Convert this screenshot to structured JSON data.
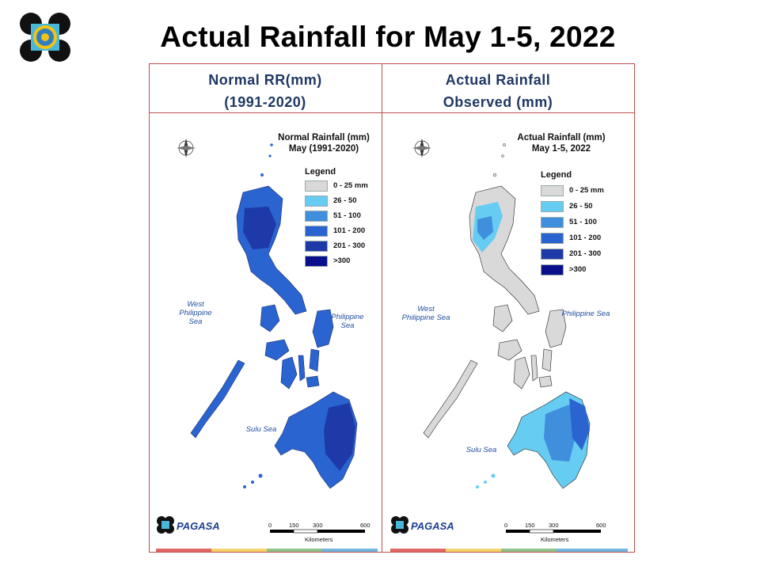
{
  "slide": {
    "title": "Actual Rainfall for May 1-5, 2022"
  },
  "columns": [
    {
      "header_line1": "Normal RR(mm)",
      "header_line2": "(1991-2020)",
      "map_title_line1": "Normal Rainfall (mm)",
      "map_title_line2": "May (1991-2020)"
    },
    {
      "header_line1": "Actual Rainfall",
      "header_line2": "Observed  (mm)",
      "map_title_line1": "Actual Rainfall (mm)",
      "map_title_line2": "May 1-5, 2022"
    }
  ],
  "legend": {
    "title": "Legend",
    "items": [
      {
        "label": "0 - 25 mm",
        "color": "#d9d9d9"
      },
      {
        "label": "26 - 50",
        "color": "#66ccf2"
      },
      {
        "label": "51 - 100",
        "color": "#3f8fdc"
      },
      {
        "label": "101 - 200",
        "color": "#2a64d0"
      },
      {
        "label": "201 - 300",
        "color": "#1e3aa8"
      },
      {
        "label": ">300",
        "color": "#0a0f8c"
      }
    ]
  },
  "labels": {
    "west_sea_line1": "West",
    "west_sea_line2": "Philippine Sea",
    "east_sea": "Philippine Sea",
    "sulu_sea": "Sulu Sea",
    "scale_0": "0",
    "scale_150": "150",
    "scale_300": "300",
    "scale_600": "600",
    "scale_unit": "Kilometers",
    "compass_n": "N",
    "compass_s": "S",
    "compass_e": "E",
    "compass_w": "W",
    "agency_logo_text": "PAGASA"
  },
  "footer_strip_colors": [
    "#e06666",
    "#f4d36b",
    "#8fc28a",
    "#6fb5de"
  ]
}
